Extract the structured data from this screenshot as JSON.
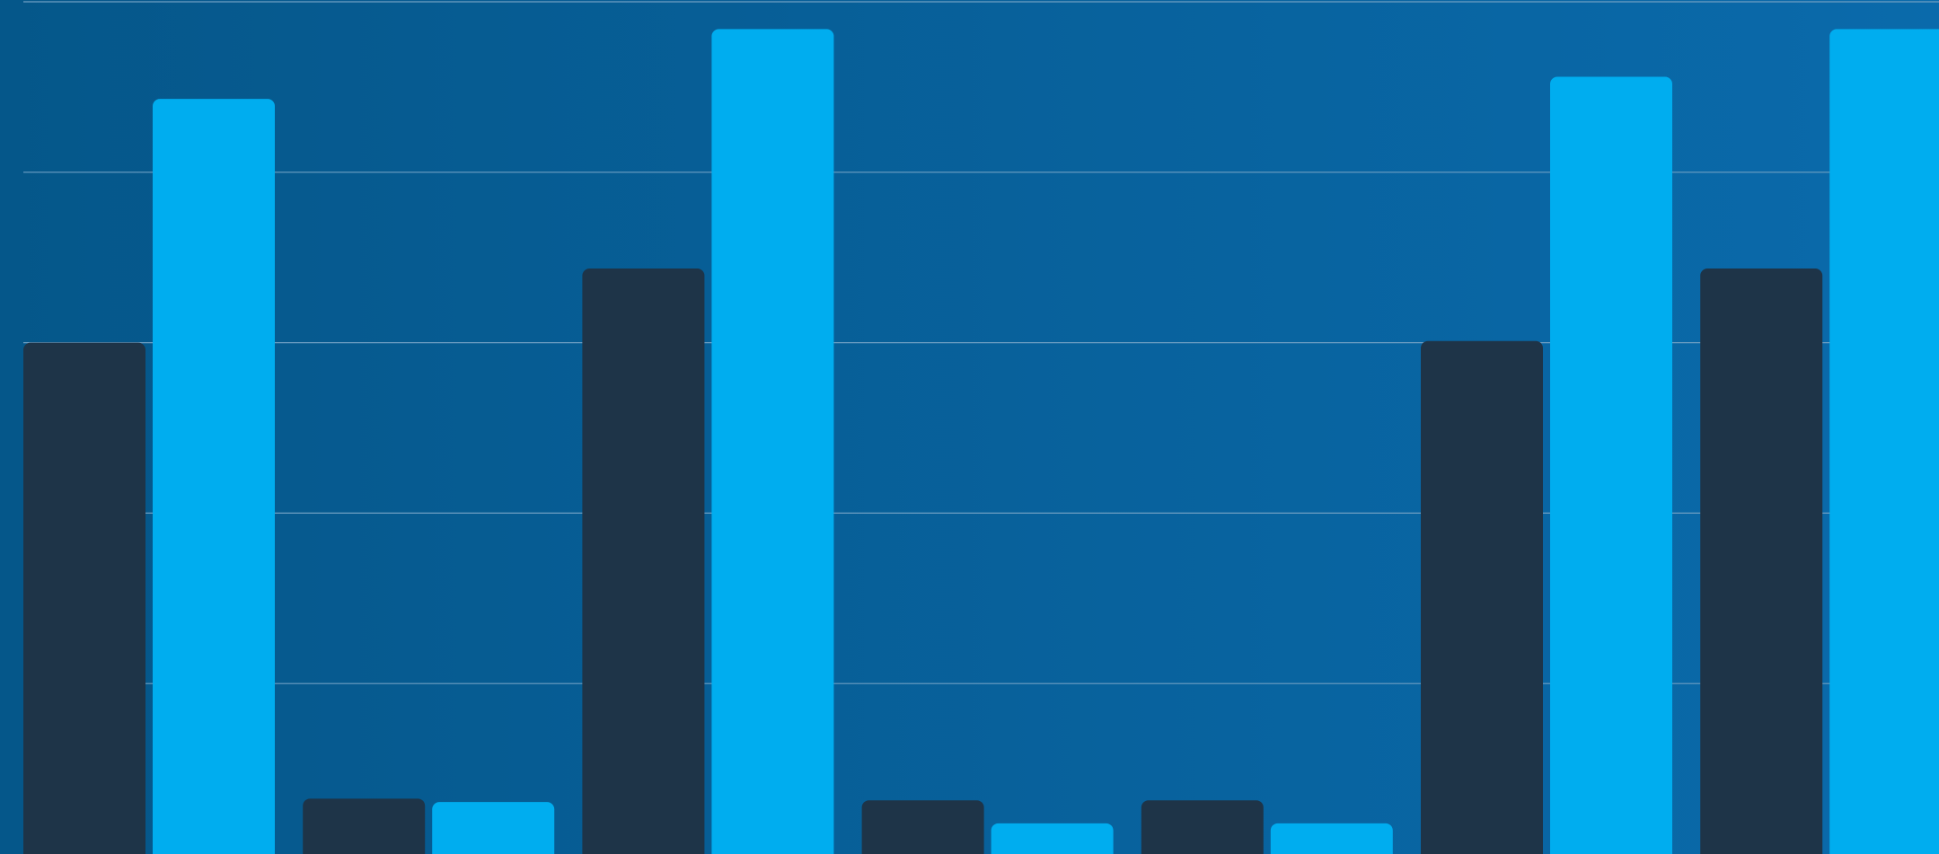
{
  "chart_data": {
    "type": "bar",
    "categories": [
      "",
      "",
      "",
      "",
      "",
      "",
      ""
    ],
    "series": [
      {
        "values": [
          60,
          6.5,
          68.7,
          6.3,
          6.3,
          60.2,
          68.7
        ]
      },
      {
        "values": [
          88.6,
          6.1,
          96.8,
          3.6,
          3.6,
          91.2,
          96.8
        ]
      }
    ],
    "ylim": [
      0,
      100
    ],
    "grid": true,
    "colors": {
      "series": [
        "#1e3448",
        "#00adef"
      ],
      "background_start": "#05578a",
      "background_end": "#0a6aab",
      "gridline": "#6f9fc3"
    }
  }
}
